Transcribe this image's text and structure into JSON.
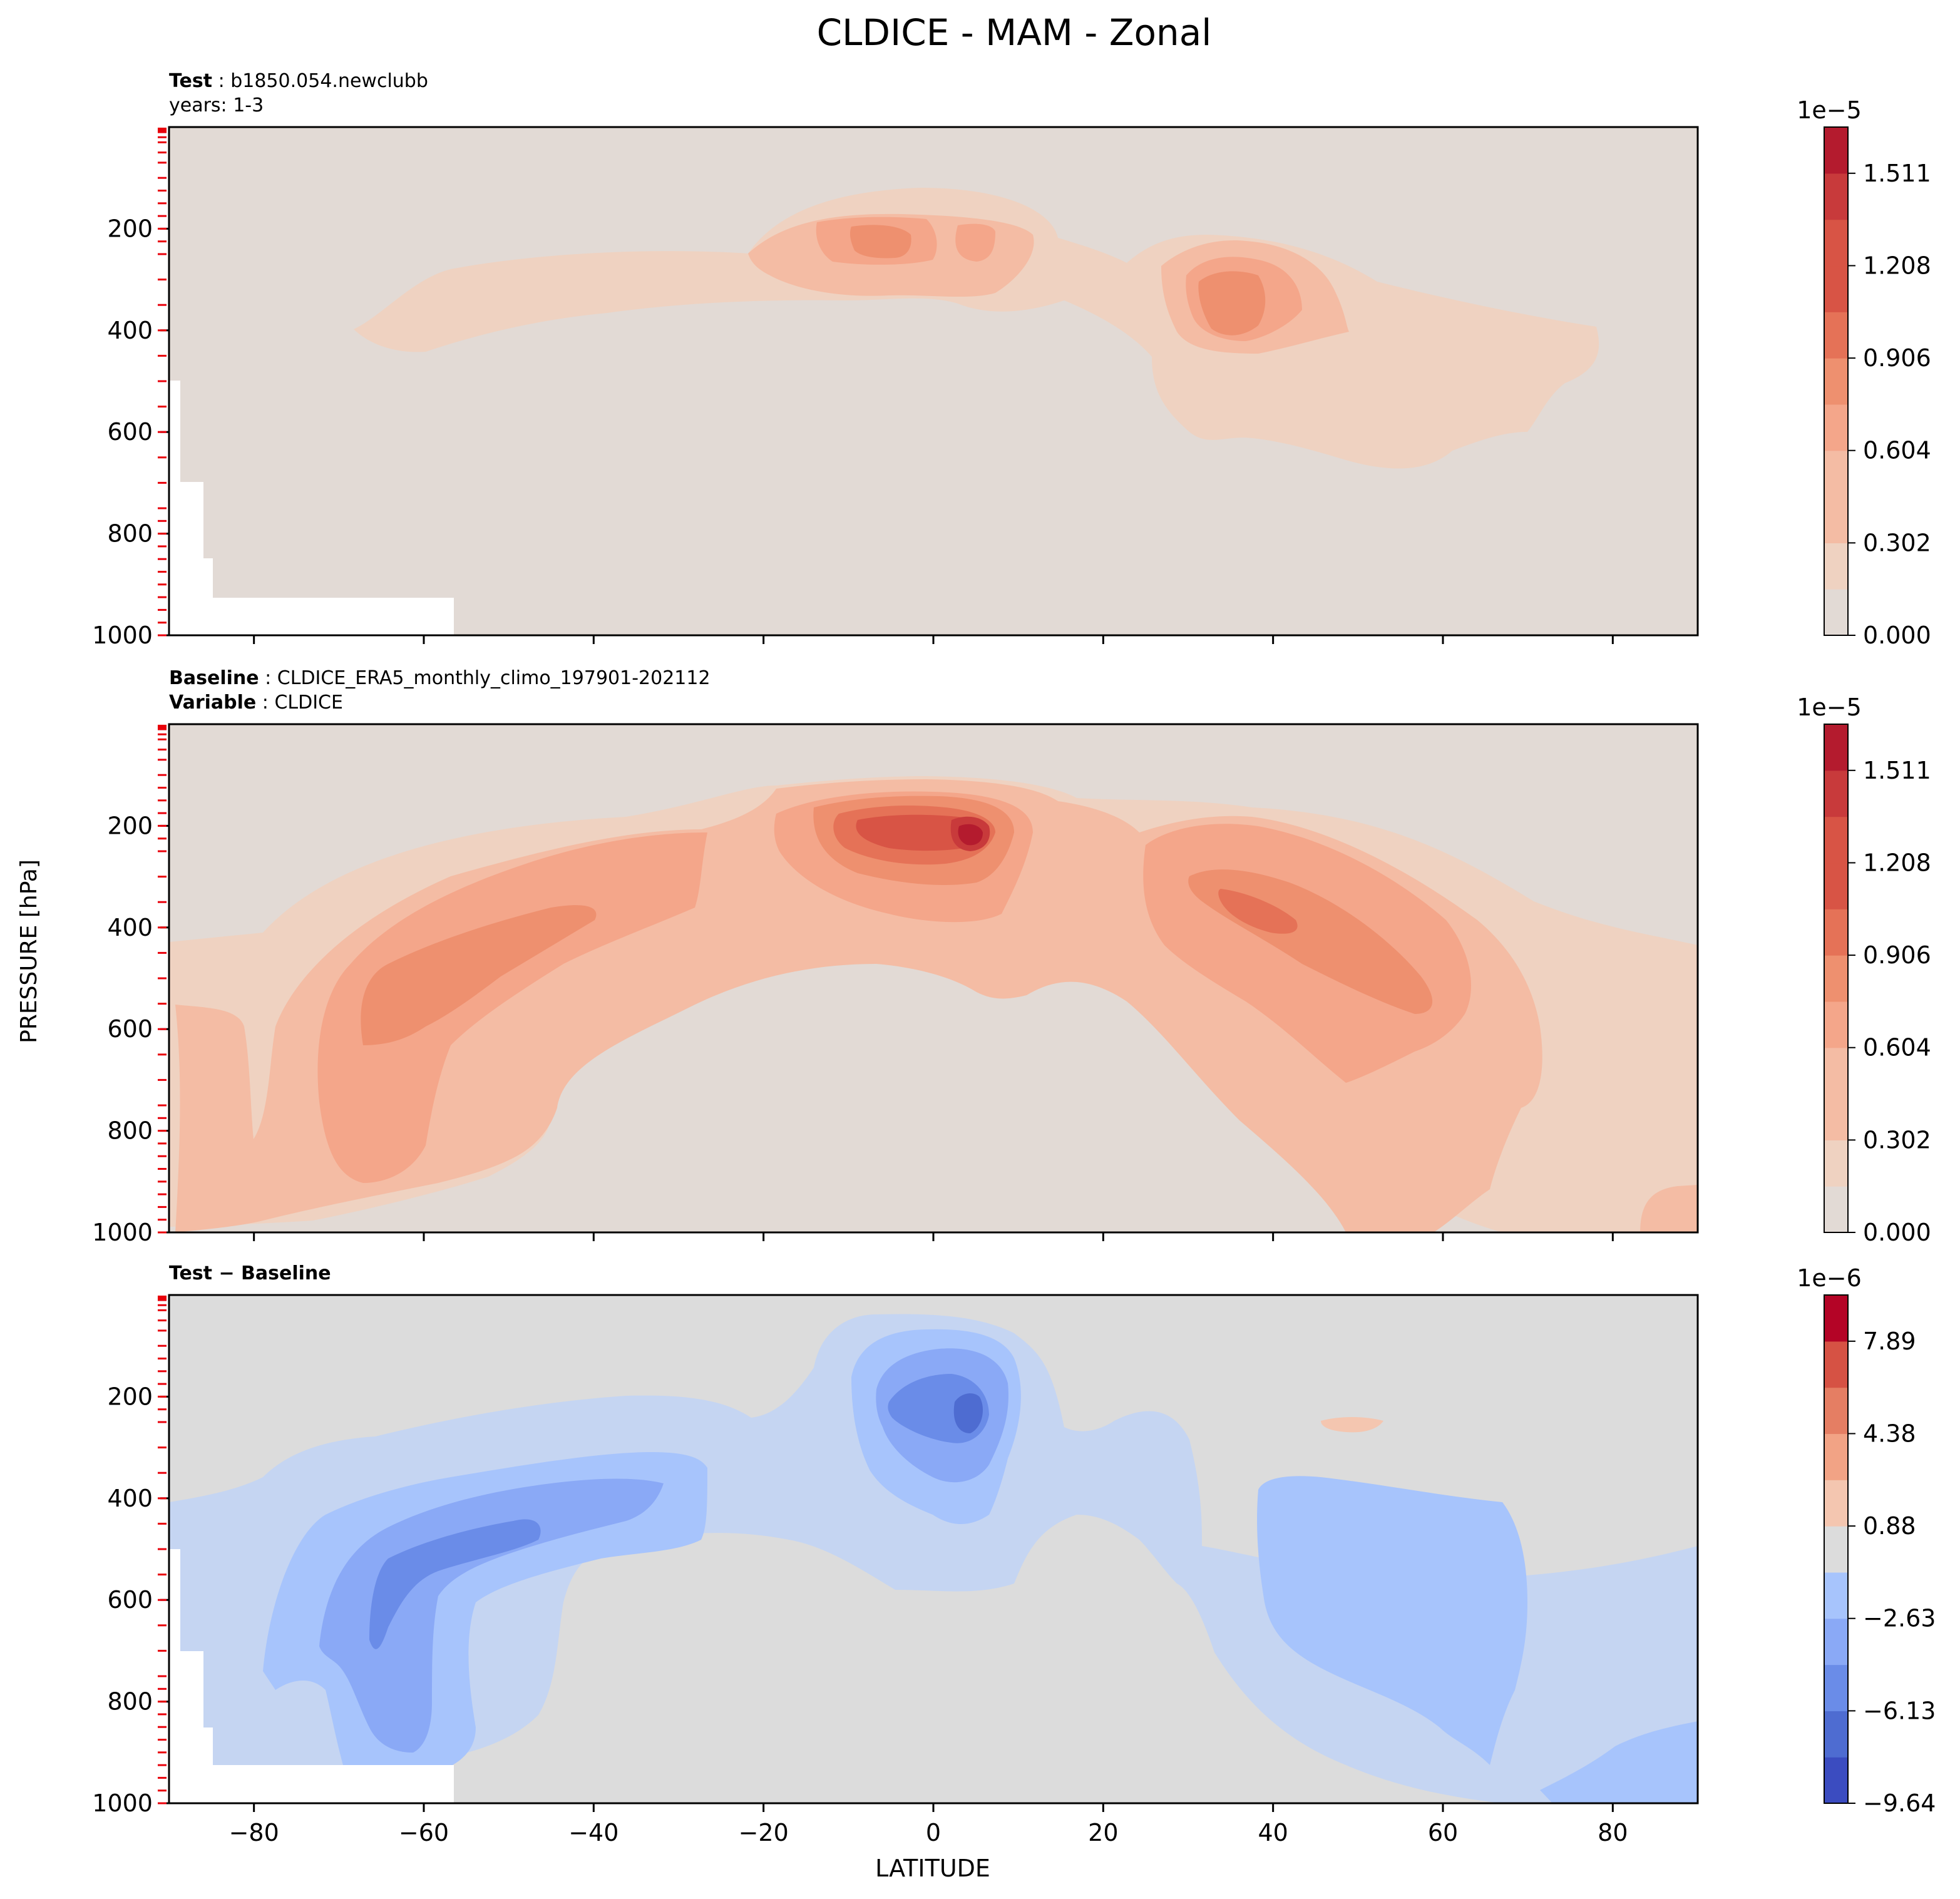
{
  "title": "CLDICE - MAM - Zonal",
  "ylabel": "PRESSURE [hPa]",
  "xlabel": "LATITUDE",
  "x_ticks": [
    -80,
    -60,
    -40,
    -20,
    0,
    20,
    40,
    60,
    80
  ],
  "x_tick_labels": [
    "−80",
    "−60",
    "−40",
    "−20",
    "0",
    "20",
    "40",
    "60",
    "80"
  ],
  "y_ticks": [
    200,
    400,
    600,
    800,
    1000
  ],
  "y_tick_labels": [
    "200",
    "400",
    "600",
    "800",
    "1000"
  ],
  "pressure_levels_hpa": [
    3,
    5,
    7,
    10,
    20,
    30,
    50,
    70,
    100,
    125,
    150,
    175,
    200,
    225,
    250,
    300,
    350,
    400,
    450,
    500,
    550,
    600,
    650,
    700,
    750,
    775,
    800,
    825,
    850,
    875,
    900,
    925,
    950,
    975,
    1000
  ],
  "level_marker_color": "#e8000b",
  "panels": [
    {
      "id": "test",
      "label1_bold": "Test",
      "label1_text": "b1850.054.newclubb",
      "label2_bold": "",
      "label2_text": "years: 1-3",
      "cbar_exponent": "1e−5",
      "cbar_labels": [
        "0.000",
        "0.302",
        "0.604",
        "0.906",
        "1.208",
        "1.511"
      ]
    },
    {
      "id": "baseline",
      "label1_bold": "Baseline",
      "label1_text": "CLDICE_ERA5_monthly_climo_197901-202112",
      "label2_bold": "Variable",
      "label2_text": "CLDICE",
      "cbar_exponent": "1e−5",
      "cbar_labels": [
        "0.000",
        "0.302",
        "0.604",
        "0.906",
        "1.208",
        "1.511"
      ]
    },
    {
      "id": "diff",
      "label1_bold": "Test − Baseline",
      "label1_text": "",
      "label2_bold": "",
      "label2_text": "",
      "cbar_exponent": "1e−6",
      "cbar_labels": [
        "−9.64",
        "−6.13",
        "−2.63",
        "0.88",
        "4.38",
        "7.89"
      ]
    }
  ],
  "chart_data": [
    {
      "type": "heatmap",
      "title": "CLDICE - MAM - Zonal",
      "subtitle": "Test: b1850.054.newclubb, years: 1-3",
      "xlabel": "LATITUDE",
      "ylabel": "PRESSURE [hPa]",
      "xlim": [
        -90,
        90
      ],
      "ylim": [
        1000,
        0
      ],
      "colormap": "coolwarm",
      "clim": [
        0,
        1.662e-05
      ],
      "colorbar_ticks": [
        0,
        3.02e-06,
        6.04e-06,
        9.06e-06,
        1.208e-05,
        1.511e-05
      ],
      "features": [
        {
          "lat": -3,
          "p": 230,
          "value": 8.5e-06
        },
        {
          "lat": 4,
          "p": 240,
          "value": 7e-06
        },
        {
          "lat": 36,
          "p": 340,
          "value": 9e-06
        },
        {
          "lat": -40,
          "p": 380,
          "value": 2.5e-06
        },
        {
          "lat": 65,
          "p": 450,
          "value": 2.5e-06
        }
      ]
    },
    {
      "type": "heatmap",
      "subtitle": "Baseline: CLDICE_ERA5_monthly_climo_197901-202112, Variable: CLDICE",
      "xlabel": "LATITUDE",
      "ylabel": "PRESSURE [hPa]",
      "xlim": [
        -90,
        90
      ],
      "ylim": [
        1000,
        0
      ],
      "colormap": "coolwarm",
      "clim": [
        0,
        1.662e-05
      ],
      "colorbar_ticks": [
        0,
        3.02e-06,
        6.04e-06,
        9.06e-06,
        1.208e-05,
        1.511e-05
      ],
      "features": [
        {
          "lat": 4,
          "p": 230,
          "value": 1.6e-05
        },
        {
          "lat": -3,
          "p": 230,
          "value": 1.25e-05
        },
        {
          "lat": -55,
          "p": 560,
          "value": 8e-06
        },
        {
          "lat": -65,
          "p": 840,
          "value": 6.5e-06
        },
        {
          "lat": 40,
          "p": 400,
          "value": 1e-05
        },
        {
          "lat": 55,
          "p": 520,
          "value": 7e-06
        },
        {
          "lat": 85,
          "p": 960,
          "value": 5e-06
        }
      ]
    },
    {
      "type": "heatmap",
      "subtitle": "Test − Baseline",
      "xlabel": "LATITUDE",
      "ylabel": "PRESSURE [hPa]",
      "xlim": [
        -90,
        90
      ],
      "ylim": [
        1000,
        0
      ],
      "colormap": "coolwarm",
      "clim": [
        -9.64e-06,
        9.64e-06
      ],
      "colorbar_ticks": [
        -9.64e-06,
        -6.13e-06,
        -2.63e-06,
        8.8e-07,
        4.38e-06,
        7.89e-06
      ],
      "features": [
        {
          "lat": 4,
          "p": 250,
          "value": -8.5e-06
        },
        {
          "lat": -55,
          "p": 540,
          "value": -6.5e-06
        },
        {
          "lat": -42,
          "p": 390,
          "value": -7.5e-06
        },
        {
          "lat": 45,
          "p": 510,
          "value": -5e-06
        },
        {
          "lat": 50,
          "p": 240,
          "value": 2e-06
        },
        {
          "lat": 85,
          "p": 920,
          "value": -4e-06
        }
      ]
    }
  ]
}
